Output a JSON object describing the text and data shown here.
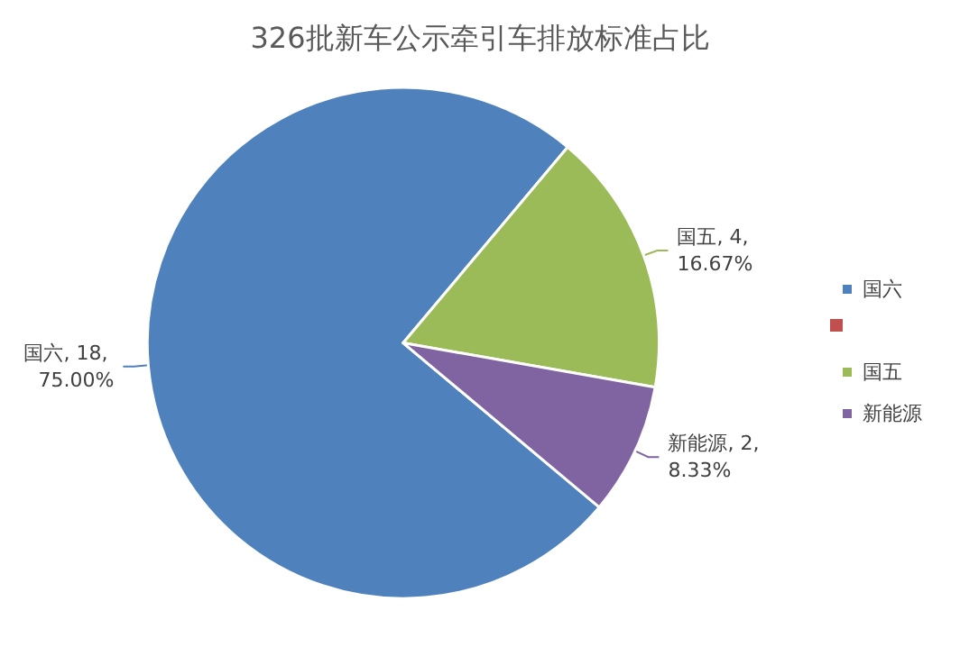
{
  "chart_data": {
    "type": "pie",
    "title": "326批新车公示牵引车排放标准占比",
    "categories": [
      "国六",
      null,
      "国五",
      "新能源"
    ],
    "values": [
      18,
      0,
      4,
      2
    ],
    "colors": [
      "#4f81bd",
      "#c0504d",
      "#9bbb59",
      "#8064a2"
    ],
    "value_labels": [
      "国六, 18, 75.00%",
      null,
      "国五, 4, 16.67%",
      "新能源, 2, 8.33%"
    ],
    "legend": "right"
  }
}
